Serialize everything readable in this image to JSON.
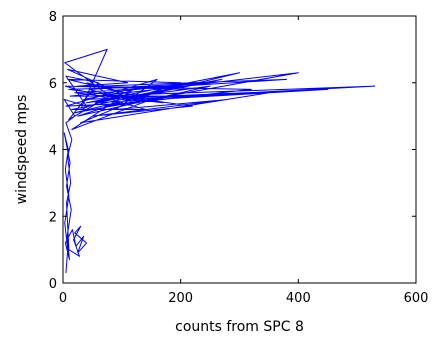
{
  "chart_data": {
    "type": "line",
    "title": "",
    "xlabel": "counts from SPC 8",
    "ylabel": "windspeed mps",
    "xlim": [
      0,
      600
    ],
    "ylim": [
      0,
      8
    ],
    "x_ticks": [
      "0",
      "200",
      "400",
      "600"
    ],
    "y_ticks": [
      "0",
      "2",
      "4",
      "6",
      "8"
    ],
    "grid": false,
    "legend": "none",
    "series_color": "#0000ff",
    "series": [
      {
        "values": [
          [
            5,
            0.3
          ],
          [
            8,
            1.0
          ],
          [
            3,
            1.8
          ],
          [
            10,
            2.6
          ],
          [
            4,
            3.4
          ],
          [
            9,
            4.0
          ],
          [
            2,
            4.5
          ],
          [
            12,
            3.6
          ],
          [
            6,
            2.9
          ],
          [
            14,
            2.2
          ],
          [
            7,
            1.4
          ],
          [
            11,
            0.7
          ],
          [
            4,
            1.2
          ],
          [
            16,
            1.6
          ],
          [
            22,
            1.1
          ],
          [
            35,
            1.4
          ],
          [
            25,
            0.9
          ],
          [
            40,
            1.2
          ],
          [
            20,
            1.5
          ],
          [
            30,
            1.7
          ],
          [
            18,
            1.3
          ],
          [
            28,
            0.8
          ],
          [
            10,
            1.0
          ],
          [
            6,
            2.4
          ],
          [
            13,
            3.0
          ],
          [
            8,
            3.8
          ],
          [
            15,
            4.3
          ],
          [
            5,
            4.8
          ],
          [
            20,
            5.0
          ],
          [
            2,
            5.5
          ],
          [
            40,
            5.3
          ],
          [
            5,
            6.2
          ],
          [
            60,
            6.0
          ],
          [
            10,
            4.9
          ],
          [
            80,
            5.6
          ],
          [
            3,
            6.6
          ],
          [
            75,
            7.0
          ],
          [
            30,
            5.2
          ],
          [
            120,
            5.8
          ],
          [
            15,
            4.6
          ],
          [
            150,
            5.5
          ],
          [
            8,
            6.1
          ],
          [
            200,
            6.0
          ],
          [
            25,
            5.0
          ],
          [
            250,
            5.9
          ],
          [
            40,
            5.4
          ],
          [
            300,
            6.3
          ],
          [
            20,
            5.1
          ],
          [
            400,
            6.3
          ],
          [
            60,
            5.6
          ],
          [
            530,
            5.9
          ],
          [
            100,
            5.5
          ],
          [
            350,
            5.7
          ],
          [
            30,
            4.8
          ],
          [
            180,
            5.9
          ],
          [
            10,
            5.8
          ],
          [
            220,
            5.3
          ],
          [
            50,
            5.0
          ],
          [
            280,
            5.5
          ],
          [
            90,
            5.2
          ],
          [
            160,
            6.1
          ],
          [
            5,
            5.3
          ],
          [
            130,
            5.4
          ],
          [
            45,
            5.8
          ],
          [
            240,
            6.0
          ],
          [
            12,
            5.6
          ],
          [
            190,
            5.6
          ],
          [
            70,
            5.3
          ],
          [
            320,
            5.8
          ],
          [
            25,
            5.9
          ],
          [
            110,
            6.0
          ],
          [
            8,
            6.4
          ],
          [
            95,
            5.7
          ],
          [
            35,
            5.5
          ],
          [
            450,
            5.8
          ],
          [
            55,
            5.4
          ],
          [
            270,
            6.1
          ],
          [
            15,
            5.2
          ],
          [
            140,
            5.2
          ],
          [
            4,
            5.9
          ],
          [
            210,
            5.8
          ],
          [
            65,
            5.9
          ],
          [
            380,
            6.1
          ],
          [
            20,
            5.7
          ],
          [
            170,
            5.4
          ],
          [
            40,
            6.0
          ]
        ]
      }
    ]
  }
}
